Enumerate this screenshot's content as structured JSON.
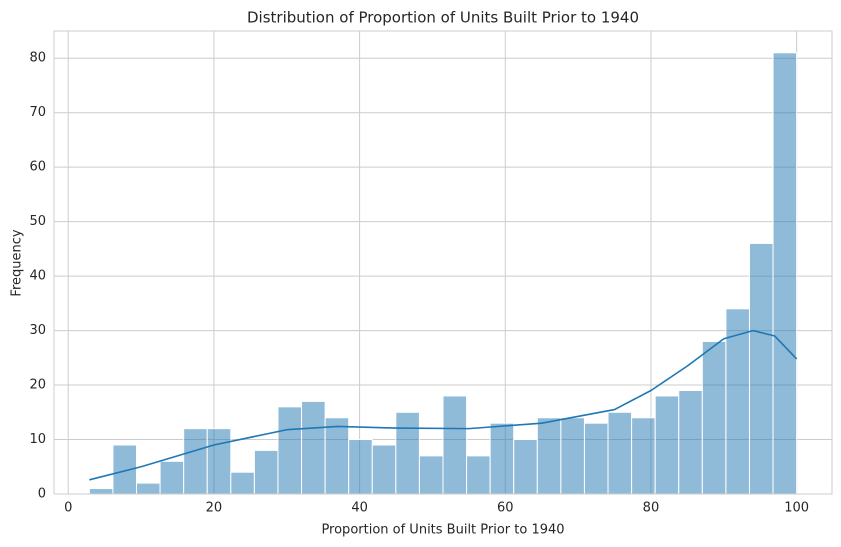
{
  "chart_data": {
    "type": "histogram",
    "title": "Distribution of Proportion of Units Built Prior to 1940",
    "xlabel": "Proportion of Units Built Prior to 1940",
    "ylabel": "Frequency",
    "bins": [
      2.9,
      6.137,
      9.373,
      12.61,
      15.847,
      19.083,
      22.32,
      25.557,
      28.793,
      32.03,
      35.267,
      38.503,
      41.74,
      44.977,
      48.213,
      51.45,
      54.687,
      57.923,
      61.16,
      64.397,
      67.633,
      70.87,
      74.107,
      77.343,
      80.58,
      83.817,
      87.053,
      90.29,
      93.527,
      96.763,
      100
    ],
    "counts": [
      1,
      9,
      2,
      6,
      12,
      12,
      4,
      8,
      16,
      17,
      14,
      10,
      9,
      15,
      7,
      18,
      7,
      13,
      10,
      14,
      14,
      13,
      15,
      14,
      18,
      19,
      28,
      34,
      46,
      81
    ],
    "color": "#1f77b4",
    "kde": {
      "x": [
        2.9,
        10,
        20,
        30,
        37,
        45,
        55,
        65,
        75,
        80,
        85,
        90,
        94,
        97,
        100
      ],
      "y": [
        2.6,
        5,
        9,
        11.8,
        12.4,
        12.1,
        12,
        13,
        15.5,
        19,
        23.5,
        28.5,
        30,
        29,
        24.8
      ],
      "color": "#1f77b4"
    },
    "xlim": [
      -1.955,
      104.855
    ],
    "xticks": [
      0,
      20,
      40,
      60,
      80,
      100
    ],
    "ylim": [
      0,
      85
    ],
    "yticks": [
      0,
      10,
      20,
      30,
      40,
      50,
      60,
      70,
      80
    ],
    "grid": true
  }
}
